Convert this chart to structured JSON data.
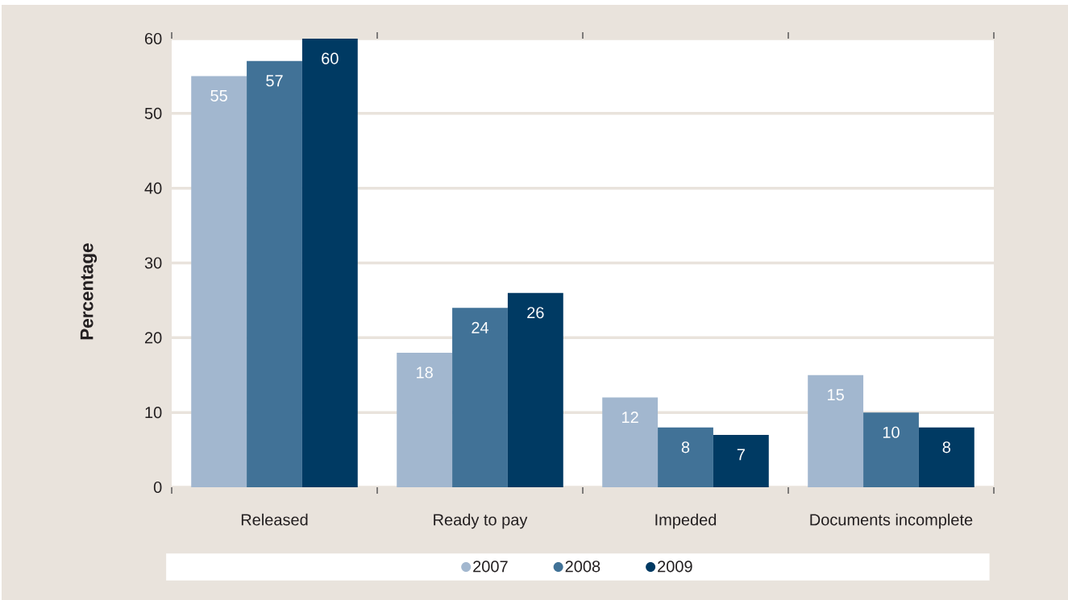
{
  "chart_data": {
    "type": "bar",
    "ylabel": "Percentage",
    "categories": [
      "Released",
      "Ready to pay",
      "Impeded",
      "Documents incomplete"
    ],
    "series": [
      {
        "name": "2007",
        "color": "#a2b7cf",
        "values": [
          55,
          18,
          12,
          15
        ]
      },
      {
        "name": "2008",
        "color": "#417297",
        "values": [
          57,
          24,
          8,
          10
        ]
      },
      {
        "name": "2009",
        "color": "#003a63",
        "values": [
          60,
          26,
          7,
          8
        ]
      }
    ],
    "ylim": [
      0,
      60
    ],
    "yticks": [
      0,
      10,
      20,
      30,
      40,
      50,
      60
    ],
    "grid": "y",
    "legend": "bottom",
    "data_labels": true
  }
}
